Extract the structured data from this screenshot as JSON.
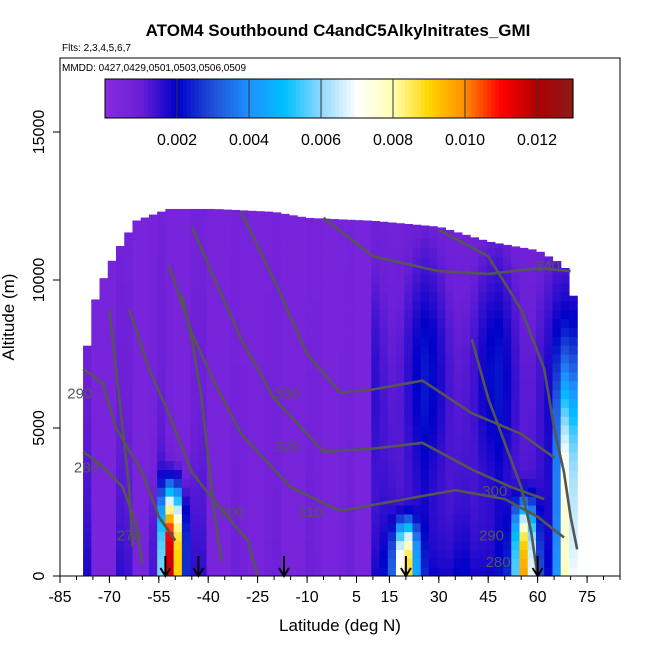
{
  "chart_data": {
    "type": "heatmap",
    "title": "ATOM4 Southbound C4andC5Alkylnitrates_GMI",
    "subtitle_flights": "Flts: 2,3,4,5,6,7",
    "subtitle_dates": "MMDD: 0427,0429,0501,0503,0506,0509",
    "xlabel": "Latitude (deg N)",
    "ylabel": "Altitude (m)",
    "xlim": [
      -85,
      85
    ],
    "ylim": [
      0,
      17500
    ],
    "x_ticks": [
      -85,
      -70,
      -55,
      -40,
      -25,
      -10,
      5,
      15,
      30,
      45,
      60,
      75
    ],
    "y_ticks": [
      0,
      5000,
      10000,
      15000
    ],
    "colorbar": {
      "range": [
        0,
        0.013
      ],
      "ticks": [
        0.002,
        0.004,
        0.006,
        0.008,
        0.01,
        0.012
      ],
      "tick_labels": [
        "0.002",
        "0.004",
        "0.006",
        "0.008",
        "0.010",
        "0.012"
      ],
      "colors": [
        "#8a2be2",
        "#6a1fd6",
        "#0000c8",
        "#1f4fd8",
        "#1e90ff",
        "#00bfff",
        "#8fd8ff",
        "#ffffff",
        "#ffffb3",
        "#ffd700",
        "#ff8c00",
        "#ff0000",
        "#b00000",
        "#8b1a1a"
      ]
    },
    "contour_labels": [
      {
        "text": "340",
        "x": 63,
        "y": 10300
      },
      {
        "text": "330",
        "x": -16,
        "y": 6000
      },
      {
        "text": "320",
        "x": -16,
        "y": 4200
      },
      {
        "text": "310",
        "x": -9,
        "y": 2000
      },
      {
        "text": "300",
        "x": -33,
        "y": 2000
      },
      {
        "text": "300",
        "x": 47,
        "y": 2700
      },
      {
        "text": "290",
        "x": -79,
        "y": 6000
      },
      {
        "text": "290",
        "x": 46,
        "y": 1200
      },
      {
        "text": "280",
        "x": -77,
        "y": 3500
      },
      {
        "text": "280",
        "x": 48,
        "y": 300
      },
      {
        "text": "270",
        "x": -64,
        "y": 1200
      }
    ],
    "flight_markers_lat": [
      -53,
      -43,
      -17,
      20,
      60
    ],
    "data_coverage": {
      "lat_range": [
        -78,
        72
      ],
      "top_altitude_by_lat": [
        [
          -78,
          7000
        ],
        [
          -74,
          9500
        ],
        [
          -70,
          10500
        ],
        [
          -66,
          11300
        ],
        [
          -62,
          12000
        ],
        [
          -52,
          12400
        ],
        [
          -38,
          12400
        ],
        [
          -20,
          12300
        ],
        [
          -10,
          12100
        ],
        [
          10,
          12000
        ],
        [
          30,
          11800
        ],
        [
          45,
          11300
        ],
        [
          60,
          11000
        ],
        [
          68,
          10500
        ],
        [
          72,
          9000
        ]
      ]
    },
    "hotspots": [
      {
        "lat": -51,
        "alt_top": 2900,
        "peak": 0.012
      },
      {
        "lat": 20,
        "alt_top": 1800,
        "peak": 0.008
      },
      {
        "lat": 56,
        "alt_top": 2400,
        "peak": 0.0085
      },
      {
        "lat": 69,
        "alt_top": 6500,
        "peak": 0.007
      }
    ]
  }
}
